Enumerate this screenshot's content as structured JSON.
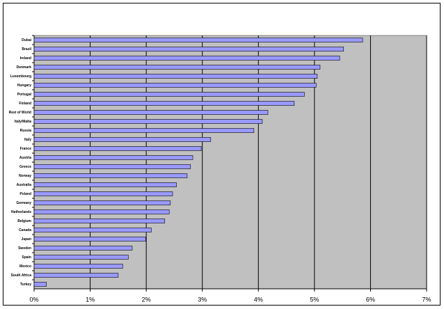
{
  "chart_data": {
    "type": "hbar",
    "categories": [
      "Dubai",
      "Brazil",
      "Ireland",
      "Denmark",
      "Luxembourg",
      "Hungary",
      "Portugal",
      "Finland",
      "Rest of World",
      "Italy/Malta",
      "Russia",
      "Italy",
      "France",
      "Austria",
      "Greece",
      "Norway",
      "Australia",
      "Poland",
      "Germany",
      "Netherlands",
      "Belgium",
      "Canada",
      "Japan",
      "Sweden",
      "Spain",
      "Mexico",
      "South Africa",
      "Turkey"
    ],
    "values": [
      5.86,
      5.52,
      5.45,
      5.1,
      5.05,
      5.03,
      4.82,
      4.64,
      4.17,
      4.07,
      3.92,
      3.15,
      2.98,
      2.83,
      2.79,
      2.73,
      2.54,
      2.47,
      2.43,
      2.41,
      2.33,
      2.09,
      1.99,
      1.75,
      1.68,
      1.58,
      1.5,
      0.22
    ],
    "color": "#9999ff",
    "xlim": [
      0,
      7
    ],
    "xticks": [
      {
        "value": 0,
        "label": "0%"
      },
      {
        "value": 1,
        "label": "1%"
      },
      {
        "value": 2,
        "label": "2%"
      },
      {
        "value": 3,
        "label": "3%"
      },
      {
        "value": 4,
        "label": "4%"
      },
      {
        "value": 5,
        "label": "5%"
      },
      {
        "value": 6,
        "label": "6%"
      },
      {
        "value": 7,
        "label": "7%"
      }
    ],
    "grid": true
  }
}
